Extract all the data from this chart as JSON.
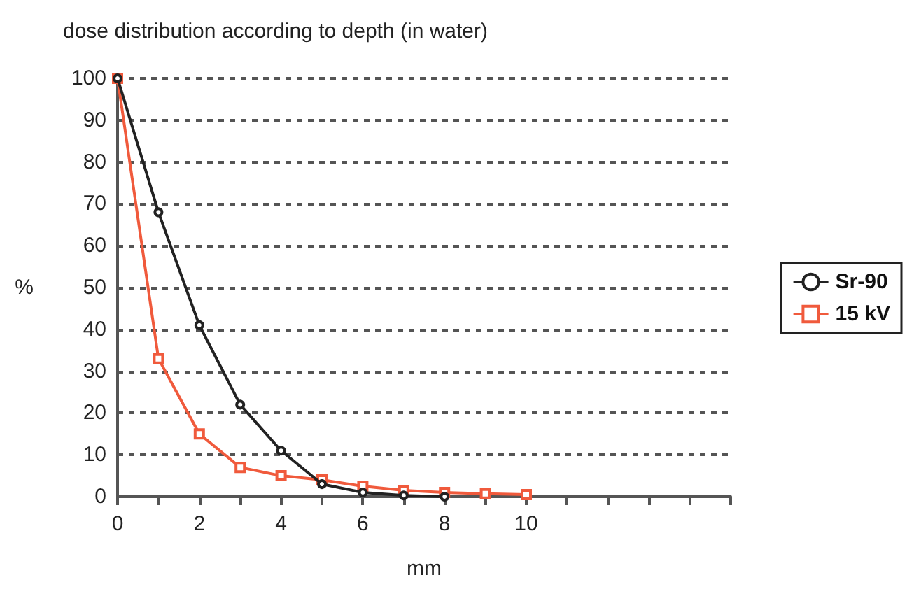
{
  "chart_data": {
    "type": "line",
    "title": "dose distribution according to depth (in water)",
    "xlabel": "mm",
    "ylabel": "%",
    "series": [
      {
        "name": "Sr-90",
        "color": "#222222",
        "marker": "circle",
        "x": [
          0,
          1,
          2,
          3,
          4,
          5,
          6,
          7,
          8
        ],
        "values": [
          100,
          68,
          41,
          22,
          11,
          3,
          1,
          0.3,
          0
        ]
      },
      {
        "name": "15 kV",
        "color": "#f05a3c",
        "marker": "square",
        "x": [
          0,
          1,
          2,
          3,
          4,
          5,
          6,
          7,
          8,
          9,
          10
        ],
        "values": [
          100,
          33,
          15,
          7,
          5,
          4,
          2.5,
          1.5,
          1,
          0.7,
          0.5
        ]
      }
    ],
    "xlim": [
      0,
      15
    ],
    "xticks": [
      0,
      {
        "value": 1,
        "label": null
      },
      2,
      {
        "value": 3,
        "label": null
      },
      4,
      {
        "value": 5,
        "label": null
      },
      6,
      {
        "value": 7,
        "label": null
      },
      8,
      {
        "value": 9,
        "label": null
      },
      10,
      {
        "value": 11,
        "label": null
      },
      {
        "value": 12,
        "label": null
      },
      {
        "value": 13,
        "label": null
      },
      {
        "value": 14,
        "label": null
      },
      {
        "value": 15,
        "label": null
      }
    ],
    "ylim": [
      0,
      100
    ],
    "yticks": [
      0,
      10,
      20,
      30,
      40,
      50,
      60,
      70,
      80,
      90,
      100
    ],
    "grid": "y",
    "legend": "right",
    "line_style": "solid"
  }
}
